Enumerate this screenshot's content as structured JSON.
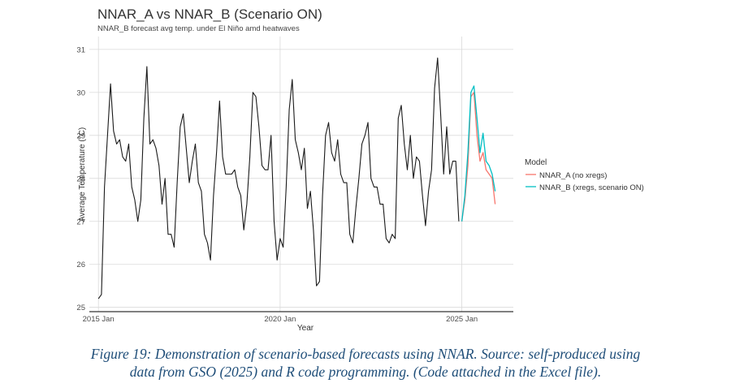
{
  "caption": {
    "line1": "Figure 19: Demonstration of scenario-based forecasts using NNAR. Source: self-produced using",
    "line2": "data from GSO (2025) and R code programming. (Code attached in the Excel file)."
  },
  "colors": {
    "history": "#1a1a1a",
    "nnar_a": "#F8766D",
    "nnar_b": "#00BFC4",
    "grid": "#d9d9d9",
    "axis": "#000000"
  },
  "chart_data": {
    "type": "line",
    "title": "NNAR_A vs NNAR_B (Scenario ON)",
    "subtitle": "NNAR_B forecast avg temp. under El Niño amd heatwaves",
    "xlabel": "Year",
    "ylabel": "Average Temperature (°C)",
    "x_ticks": [
      "2015 Jan",
      "2020 Jan",
      "2025 Jan"
    ],
    "y_ticks": [
      25,
      26,
      27,
      28,
      29,
      30,
      31
    ],
    "xlim": [
      "2014-10",
      "2026-06"
    ],
    "ylim": [
      24.9,
      31.3
    ],
    "grid": true,
    "legend_position": "right",
    "legend_title": "Model",
    "history": {
      "start": "2015-01",
      "frequency": "monthly",
      "values": [
        25.2,
        25.3,
        27.8,
        29.0,
        30.2,
        29.1,
        28.8,
        28.9,
        28.5,
        28.4,
        28.8,
        27.8,
        27.5,
        27.0,
        27.5,
        29.4,
        30.6,
        28.8,
        28.9,
        28.7,
        28.3,
        27.4,
        28.0,
        26.7,
        26.7,
        26.4,
        27.9,
        29.2,
        29.5,
        28.7,
        27.9,
        28.4,
        28.8,
        27.9,
        27.7,
        26.7,
        26.5,
        26.1,
        27.6,
        28.6,
        29.8,
        28.5,
        28.1,
        28.1,
        28.1,
        28.2,
        27.8,
        27.6,
        26.8,
        27.4,
        28.5,
        30.0,
        29.9,
        29.2,
        28.3,
        28.2,
        28.2,
        29.0,
        27.0,
        26.1,
        26.6,
        26.4,
        27.8,
        29.6,
        30.3,
        28.9,
        28.6,
        28.2,
        28.7,
        27.3,
        27.7,
        26.8,
        25.5,
        25.6,
        27.6,
        29.0,
        29.3,
        28.6,
        28.4,
        28.9,
        28.1,
        27.9,
        27.9,
        26.7,
        26.5,
        27.3,
        28.0,
        28.8,
        29.0,
        29.3,
        28.0,
        27.8,
        27.8,
        27.4,
        27.4,
        26.6,
        26.5,
        26.7,
        26.6,
        29.4,
        29.7,
        28.8,
        28.2,
        29.0,
        28.0,
        28.5,
        28.4,
        27.6,
        26.9,
        27.7,
        28.2,
        30.1,
        30.8,
        29.5,
        28.1,
        29.2,
        28.1,
        28.4,
        28.4,
        27.0
      ]
    },
    "series": [
      {
        "name": "NNAR_A (no xregs)",
        "start": "2025-01",
        "values": [
          27.0,
          27.5,
          28.3,
          29.9,
          30.0,
          29.0,
          28.4,
          28.6,
          28.2,
          28.1,
          28.0,
          27.4
        ]
      },
      {
        "name": "NNAR_B (xregs, scenario ON)",
        "start": "2025-01",
        "values": [
          27.0,
          27.6,
          28.6,
          30.0,
          30.15,
          29.4,
          28.6,
          29.05,
          28.4,
          28.3,
          28.1,
          27.7
        ]
      }
    ]
  }
}
